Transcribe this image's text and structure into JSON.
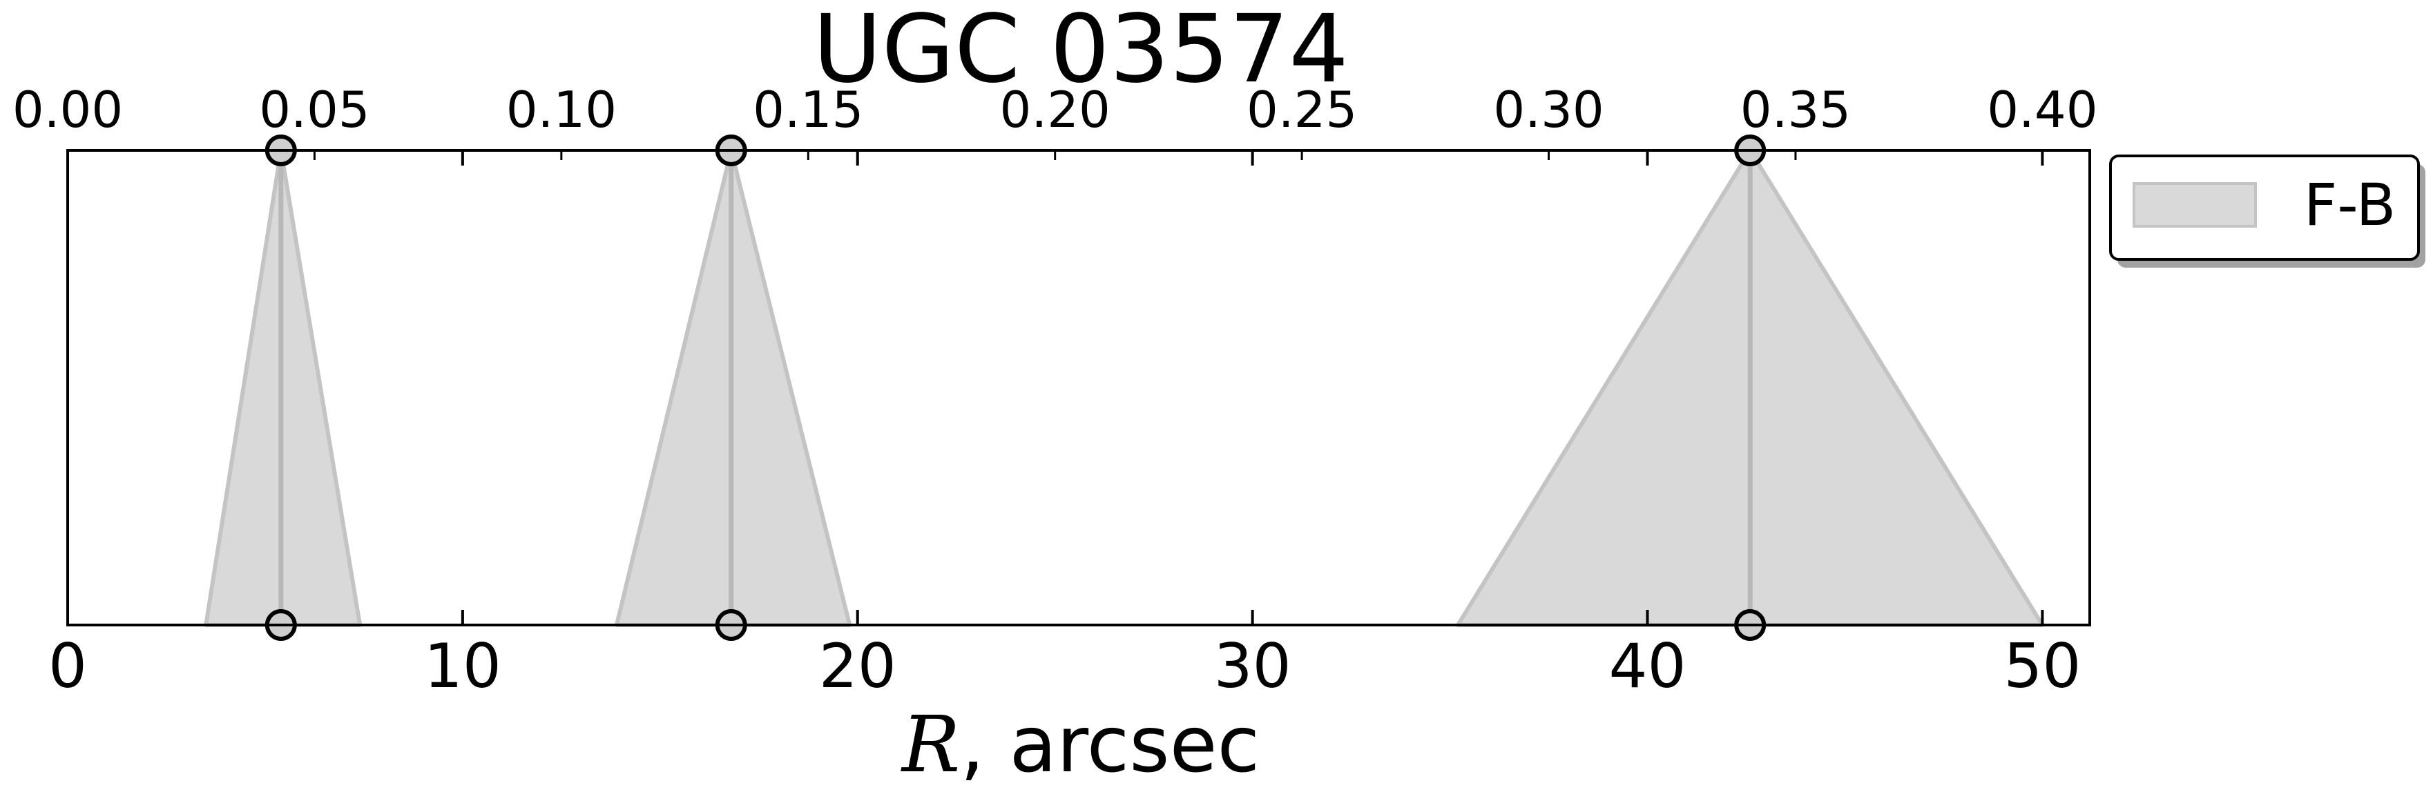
{
  "chart_data": {
    "type": "area",
    "title": "UGC 03574",
    "xlabel_var": "R",
    "xlabel_rest": ", arcsec",
    "xlim": [
      0,
      51.2
    ],
    "xticks": [
      0,
      10,
      20,
      30,
      40,
      50
    ],
    "top_axis": {
      "xlim": [
        0,
        0.4096
      ],
      "ticks": [
        "0.00",
        "0.05",
        "0.10",
        "0.15",
        "0.20",
        "0.25",
        "0.30",
        "0.35",
        "0.40"
      ]
    },
    "series": [
      {
        "name": "F-B",
        "color": "#d9d9d9",
        "edge_color": "#c4c4c4",
        "triangles": [
          {
            "peak": 5.4,
            "left": 3.5,
            "right": 7.4
          },
          {
            "peak": 16.8,
            "left": 13.9,
            "right": 19.8
          },
          {
            "peak": 42.6,
            "left": 35.2,
            "right": 50.0
          }
        ]
      }
    ],
    "legend": {
      "position": "outside-right-top",
      "label": "F-B"
    },
    "grid": false
  }
}
